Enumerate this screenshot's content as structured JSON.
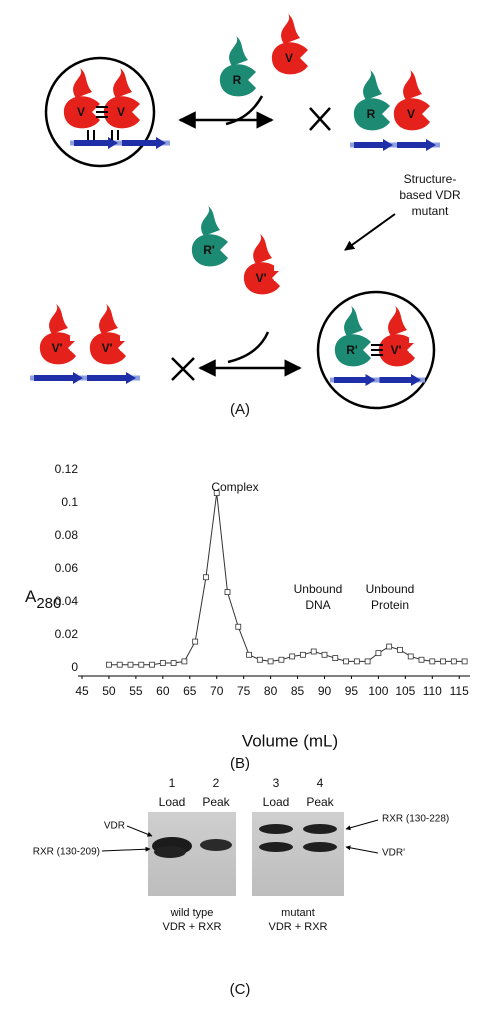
{
  "diagram": {
    "proteins": [
      "V",
      "V",
      "R",
      "V",
      "R",
      "V",
      "R'",
      "V'",
      "V'",
      "V'",
      "R'",
      "V'"
    ],
    "note": [
      "Structure-",
      "based VDR",
      "mutant"
    ],
    "panel": "(A)"
  },
  "chart_data": {
    "type": "line",
    "marker": "square",
    "color": "#333333",
    "x": [
      50,
      52,
      54,
      56,
      58,
      60,
      62,
      64,
      66,
      68,
      70,
      72,
      74,
      76,
      78,
      80,
      82,
      84,
      86,
      88,
      90,
      92,
      94,
      96,
      98,
      100,
      102,
      104,
      106,
      108,
      110,
      112,
      114,
      116
    ],
    "values": [
      0.002,
      0.002,
      0.002,
      0.002,
      0.002,
      0.003,
      0.003,
      0.004,
      0.016,
      0.055,
      0.106,
      0.046,
      0.025,
      0.008,
      0.005,
      0.004,
      0.005,
      0.007,
      0.008,
      0.01,
      0.008,
      0.006,
      0.004,
      0.004,
      0.004,
      0.009,
      0.013,
      0.011,
      0.007,
      0.005,
      0.004,
      0.004,
      0.004,
      0.004
    ],
    "xlim": [
      45,
      117
    ],
    "ylim": [
      0,
      0.12
    ],
    "xticks": [
      45,
      50,
      55,
      60,
      65,
      70,
      75,
      80,
      85,
      90,
      95,
      100,
      105,
      110,
      115
    ],
    "yticks": [
      0,
      0.02,
      0.04,
      0.06,
      0.08,
      0.1,
      0.12
    ],
    "xlabel": "Volume (mL)",
    "ylabel": "A",
    "ylabel_subscript": "280",
    "annotations": [
      [
        "Complex"
      ],
      [
        "Unbound",
        "DNA"
      ],
      [
        "Unbound",
        "Protein"
      ]
    ],
    "panel": "(B)"
  },
  "gel": {
    "lanes": [
      "1",
      "2",
      "3",
      "4"
    ],
    "lane_labels": [
      "Load",
      "Peak",
      "Load",
      "Peak"
    ],
    "left_markers": [
      "VDR",
      "RXR (130-209)"
    ],
    "right_markers": [
      "RXR (130-228)",
      "VDR'"
    ],
    "captions": [
      [
        "wild type",
        "VDR + RXR"
      ],
      [
        "mutant",
        "VDR + RXR"
      ]
    ],
    "panel": "(C)"
  }
}
